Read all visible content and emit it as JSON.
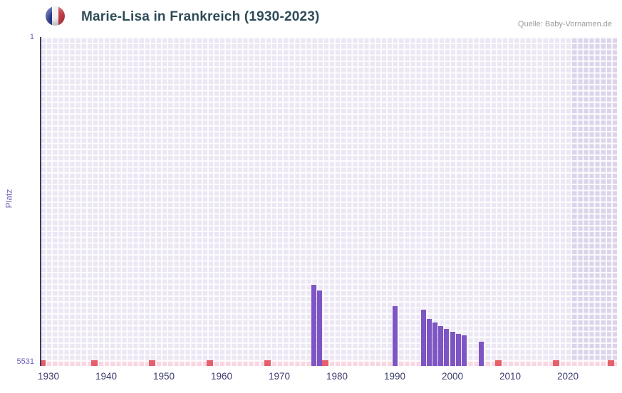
{
  "header": {
    "title": "Marie-Lisa in Frankreich (1930-2023)",
    "source": "Quelle: Baby-Vornamen.de",
    "flag_icon": "france-flag-icon"
  },
  "chart_data": {
    "type": "bar",
    "title": "Marie-Lisa in Frankreich (1930-2023)",
    "xlabel": "",
    "ylabel": "Platz",
    "y_axis": {
      "top_label": "1",
      "bottom_label": "5531",
      "min": 1,
      "max": 5531,
      "inverted": true
    },
    "x_ticks": [
      "1930",
      "1940",
      "1950",
      "1960",
      "1970",
      "1980",
      "1990",
      "2000",
      "2010",
      "2020"
    ],
    "x_range": [
      1929,
      2023
    ],
    "grid": true,
    "legend": "none",
    "bars": [
      {
        "year": 1976,
        "rank": 4230
      },
      {
        "year": 1977,
        "rank": 4330
      },
      {
        "year": 1990,
        "rank": 4590
      },
      {
        "year": 1995,
        "rank": 4650
      },
      {
        "year": 1996,
        "rank": 4810
      },
      {
        "year": 1997,
        "rank": 4880
      },
      {
        "year": 1998,
        "rank": 4930
      },
      {
        "year": 1999,
        "rank": 4980
      },
      {
        "year": 2000,
        "rank": 5030
      },
      {
        "year": 2001,
        "rank": 5070
      },
      {
        "year": 2002,
        "rank": 5090
      },
      {
        "year": 2005,
        "rank": 5200
      }
    ],
    "no_rank_marker_years": [
      1929,
      1938,
      1948,
      1958,
      1968,
      1978,
      2008,
      2018
    ],
    "right_edge_marker": true,
    "shaded_band_start_year": 2021,
    "colors": {
      "bar": "#7d55c4",
      "plot_bg": "#ebe7f4",
      "band_bg": "#dcd4ea",
      "bottom_row": "#f8d7e3",
      "marker": "#e4606b",
      "axis_text": "#7160b8",
      "year_text": "#3c3c6e",
      "title_text": "#2e4b57"
    }
  }
}
